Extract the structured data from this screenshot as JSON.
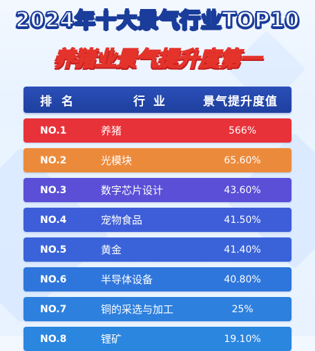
{
  "title": "2024年十大景气行业TOP10",
  "subtitle": "养猪业景气提升度第一",
  "table": {
    "headers": {
      "rank": "排名",
      "industry": "行业",
      "value": "景气提升度值"
    },
    "rows": [
      {
        "rank": "NO.1",
        "industry": "养猪",
        "value": "566%",
        "color": "#e8323a"
      },
      {
        "rank": "NO.2",
        "industry": "光模块",
        "value": "65.60%",
        "color": "#ec8a3c"
      },
      {
        "rank": "NO.3",
        "industry": "数字芯片设计",
        "value": "43.60%",
        "color": "#5a4fd6"
      },
      {
        "rank": "NO.4",
        "industry": "宠物食品",
        "value": "41.50%",
        "color": "#3d5ed8"
      },
      {
        "rank": "NO.5",
        "industry": "黄金",
        "value": "41.40%",
        "color": "#3a63d9"
      },
      {
        "rank": "NO.6",
        "industry": "半导体设备",
        "value": "40.80%",
        "color": "#2f76dc"
      },
      {
        "rank": "NO.7",
        "industry": "铜的采选与加工",
        "value": "25%",
        "color": "#2d80de"
      },
      {
        "rank": "NO.8",
        "industry": "锂矿",
        "value": "19.10%",
        "color": "#2b86e0"
      }
    ]
  }
}
